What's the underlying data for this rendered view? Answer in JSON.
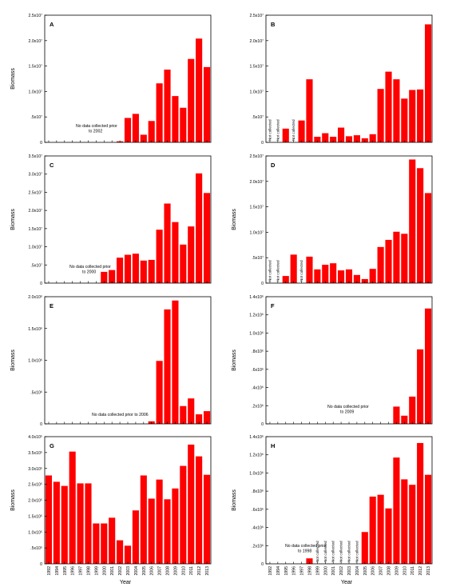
{
  "figure": {
    "x_axis_label": "Year",
    "bar_color": "#ff0000",
    "years": [
      "1992",
      "1994",
      "1995",
      "1996",
      "1997",
      "1998",
      "1999",
      "2000",
      "2001",
      "2002",
      "2003",
      "2004",
      "2005",
      "2006",
      "2007",
      "2008",
      "2009",
      "2010",
      "2011",
      "2012",
      "2013"
    ]
  },
  "chart_data": [
    {
      "type": "bar",
      "panel": "A",
      "ylabel": "Biomass",
      "ylim": [
        0,
        2.5
      ],
      "exponent": 7,
      "yticks": [
        0,
        0.5,
        1.0,
        1.5,
        2.0,
        2.5
      ],
      "categories": [
        "1992",
        "1994",
        "1995",
        "1996",
        "1997",
        "1998",
        "1999",
        "2000",
        "2001",
        "2002",
        "2003",
        "2004",
        "2005",
        "2006",
        "2007",
        "2008",
        "2009",
        "2010",
        "2011",
        "2012",
        "2013"
      ],
      "values": [
        null,
        null,
        null,
        null,
        null,
        null,
        null,
        null,
        null,
        0.02,
        0.48,
        0.56,
        0.15,
        0.42,
        1.16,
        1.43,
        0.91,
        0.68,
        1.64,
        2.04,
        1.48
      ],
      "annotation": "No data collected prior\nto 2002",
      "not_collected_years": []
    },
    {
      "type": "bar",
      "panel": "B",
      "ylabel": "",
      "ylim": [
        0,
        2.5
      ],
      "exponent": 7,
      "yticks": [
        0,
        0.5,
        1.0,
        1.5,
        2.0,
        2.5
      ],
      "categories": [
        "1992",
        "1994",
        "1995",
        "1996",
        "1997",
        "1998",
        "1999",
        "2000",
        "2001",
        "2002",
        "2003",
        "2004",
        "2005",
        "2006",
        "2007",
        "2008",
        "2009",
        "2010",
        "2011",
        "2012",
        "2013"
      ],
      "values": [
        null,
        null,
        0.27,
        null,
        0.43,
        1.24,
        0.11,
        0.18,
        0.11,
        0.29,
        0.12,
        0.14,
        0.08,
        0.16,
        1.05,
        1.39,
        1.24,
        0.86,
        1.03,
        1.04,
        2.32
      ],
      "annotation": "",
      "not_collected_years": [
        "1992",
        "1994",
        "1996"
      ]
    },
    {
      "type": "bar",
      "panel": "C",
      "ylabel": "Biomass",
      "ylim": [
        0,
        3.5
      ],
      "exponent": 7,
      "yticks": [
        0,
        0.5,
        1.0,
        1.5,
        2.0,
        2.5,
        3.0,
        3.5
      ],
      "categories": [
        "1992",
        "1994",
        "1995",
        "1996",
        "1997",
        "1998",
        "1999",
        "2000",
        "2001",
        "2002",
        "2003",
        "2004",
        "2005",
        "2006",
        "2007",
        "2008",
        "2009",
        "2010",
        "2011",
        "2012",
        "2013"
      ],
      "values": [
        null,
        null,
        null,
        null,
        null,
        null,
        null,
        0.31,
        0.36,
        0.7,
        0.78,
        0.81,
        0.62,
        0.64,
        1.47,
        2.19,
        1.68,
        1.06,
        1.56,
        3.02,
        2.48
      ],
      "annotation": "No data collected prior\nto 2000",
      "not_collected_years": []
    },
    {
      "type": "bar",
      "panel": "D",
      "ylabel": "Biomass",
      "ylim": [
        0,
        2.5
      ],
      "exponent": 7,
      "yticks": [
        0,
        0.5,
        1.0,
        1.5,
        2.0,
        2.5
      ],
      "categories": [
        "1992",
        "1994",
        "1995",
        "1996",
        "1997",
        "1998",
        "1999",
        "2000",
        "2001",
        "2002",
        "2003",
        "2004",
        "2005",
        "2006",
        "2007",
        "2008",
        "2009",
        "2010",
        "2011",
        "2012",
        "2013"
      ],
      "values": [
        null,
        null,
        0.14,
        0.56,
        null,
        0.52,
        0.27,
        0.36,
        0.39,
        0.25,
        0.27,
        0.16,
        0.08,
        0.28,
        0.71,
        0.85,
        1.01,
        0.97,
        2.43,
        2.26,
        1.77
      ],
      "annotation": "",
      "not_collected_years": [
        "1992",
        "1994",
        "1997"
      ]
    },
    {
      "type": "bar",
      "panel": "E",
      "ylabel": "Biomass",
      "ylim": [
        0,
        2.0
      ],
      "exponent": 6,
      "yticks": [
        0,
        0.5,
        1.0,
        1.5,
        2.0
      ],
      "categories": [
        "1992",
        "1994",
        "1995",
        "1996",
        "1997",
        "1998",
        "1999",
        "2000",
        "2001",
        "2002",
        "2003",
        "2004",
        "2005",
        "2006",
        "2007",
        "2008",
        "2009",
        "2010",
        "2011",
        "2012",
        "2013"
      ],
      "values": [
        null,
        null,
        null,
        null,
        null,
        null,
        null,
        null,
        null,
        null,
        null,
        null,
        null,
        0.04,
        0.99,
        1.8,
        1.94,
        0.28,
        0.4,
        0.15,
        0.2
      ],
      "annotation": "No data collected prior to 2006",
      "not_collected_years": []
    },
    {
      "type": "bar",
      "panel": "F",
      "ylabel": "Biomass",
      "ylim": [
        0,
        1.4
      ],
      "exponent": 6,
      "yticks": [
        0,
        0.2,
        0.4,
        0.6,
        0.8,
        1.0,
        1.2,
        1.4
      ],
      "categories": [
        "1992",
        "1994",
        "1995",
        "1996",
        "1997",
        "1998",
        "1999",
        "2000",
        "2001",
        "2002",
        "2003",
        "2004",
        "2005",
        "2006",
        "2007",
        "2008",
        "2009",
        "2010",
        "2011",
        "2012",
        "2013"
      ],
      "values": [
        null,
        null,
        null,
        null,
        null,
        null,
        null,
        null,
        null,
        null,
        null,
        null,
        null,
        null,
        null,
        null,
        0.19,
        0.09,
        0.3,
        0.82,
        1.27
      ],
      "annotation": "No data collected prior\nto 2009",
      "not_collected_years": []
    },
    {
      "type": "bar",
      "panel": "G",
      "ylabel": "Biomass",
      "ylim": [
        0,
        4.0
      ],
      "exponent": 5,
      "yticks": [
        0,
        0.5,
        1.0,
        1.5,
        2.0,
        2.5,
        3.0,
        3.5,
        4.0
      ],
      "categories": [
        "1992",
        "1994",
        "1995",
        "1996",
        "1997",
        "1998",
        "1999",
        "2000",
        "2001",
        "2002",
        "2003",
        "2004",
        "2005",
        "2006",
        "2007",
        "2008",
        "2009",
        "2010",
        "2011",
        "2012",
        "2013"
      ],
      "values": [
        2.78,
        2.58,
        2.45,
        3.53,
        2.53,
        2.53,
        1.27,
        1.27,
        1.45,
        0.74,
        0.57,
        1.68,
        2.78,
        2.05,
        2.65,
        2.03,
        2.37,
        3.08,
        3.75,
        3.38,
        2.8
      ],
      "annotation": "",
      "not_collected_years": []
    },
    {
      "type": "bar",
      "panel": "H",
      "ylabel": "Biomass",
      "ylim": [
        0,
        1.4
      ],
      "exponent": 6,
      "yticks": [
        0,
        0.2,
        0.4,
        0.6,
        0.8,
        1.0,
        1.2,
        1.4
      ],
      "categories": [
        "1992",
        "1994",
        "1995",
        "1996",
        "1997",
        "1998",
        "1999",
        "2000",
        "2001",
        "2002",
        "2003",
        "2004",
        "2005",
        "2006",
        "2007",
        "2008",
        "2009",
        "2010",
        "2011",
        "2012",
        "2013"
      ],
      "values": [
        null,
        null,
        null,
        null,
        null,
        0.06,
        null,
        null,
        null,
        null,
        null,
        null,
        0.35,
        0.74,
        0.76,
        0.61,
        1.17,
        0.93,
        0.87,
        1.33,
        0.98
      ],
      "annotation": "No data collected prior\nto 1998",
      "not_collected_years": [
        "1999",
        "2000",
        "2001",
        "2002",
        "2003",
        "2004"
      ]
    }
  ],
  "not_collected_label": "Not collected"
}
